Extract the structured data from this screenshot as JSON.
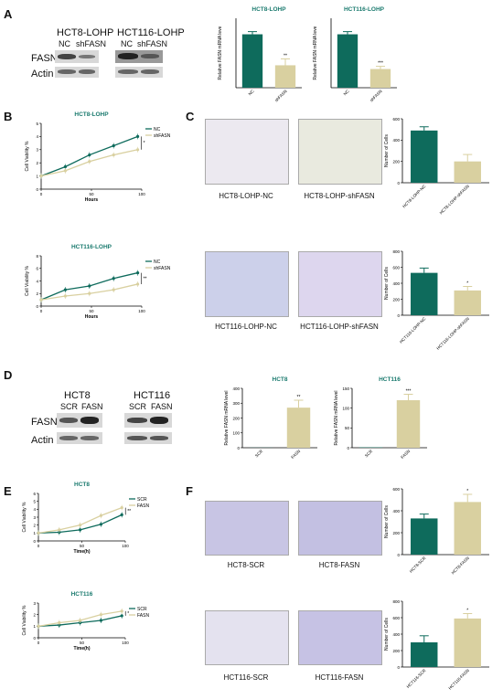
{
  "colors": {
    "teal": "#0e6b5c",
    "khaki": "#d9d0a0",
    "tealLine": "#1a7a6e"
  },
  "A": {
    "letter": "A",
    "wb": {
      "group1": "HCT8-LOHP",
      "group2": "HCT116-LOHP",
      "lane1": "NC",
      "lane2": "shFASN",
      "lane3": "NC",
      "lane4": "shFASN",
      "row1": "FASN",
      "row2": "Actin"
    }
  },
  "B": {
    "letter": "B"
  },
  "C": {
    "letter": "C",
    "captions": [
      "HCT8-LOHP-NC",
      "HCT8-LOHP-shFASN",
      "HCT116-LOHP-NC",
      "HCT116-LOHP-shFASN"
    ]
  },
  "D": {
    "letter": "D",
    "wb": {
      "group1": "HCT8",
      "group2": "HCT116",
      "lane1": "SCR",
      "lane2": "FASN",
      "lane3": "SCR",
      "lane4": "FASN",
      "row1": "FASN",
      "row2": "Actin"
    }
  },
  "E": {
    "letter": "E"
  },
  "F": {
    "letter": "F",
    "captions": [
      "HCT8-SCR",
      "HCT8-FASN",
      "HCT116-SCR",
      "HCT116-FASN"
    ]
  },
  "chart_data": [
    {
      "id": "A-HCT8",
      "type": "bar",
      "title": "HCT8-LOHP",
      "ylabel": "Relative FASN mRNA leve",
      "categories": [
        "NC",
        "shFASN"
      ],
      "values": [
        1.0,
        0.42
      ],
      "errors": [
        0.05,
        0.12
      ],
      "ylim": [
        0,
        1.3
      ],
      "sig": "**"
    },
    {
      "id": "A-HCT116",
      "type": "bar",
      "title": "HCT116-LOHP",
      "ylabel": "Relative FASN mRNA leve",
      "categories": [
        "NC",
        "shFASN"
      ],
      "values": [
        1.0,
        0.35
      ],
      "errors": [
        0.05,
        0.05
      ],
      "ylim": [
        0,
        1.3
      ],
      "sig": "***"
    },
    {
      "id": "B-HCT8",
      "type": "line",
      "title": "HCT8-LOHP",
      "xlabel": "Hours",
      "ylabel": "Cell Viability %",
      "x": [
        0,
        24,
        48,
        72,
        96
      ],
      "xticks": [
        0,
        50,
        100
      ],
      "ylim": [
        0,
        5
      ],
      "yticks": [
        0,
        1,
        2,
        3,
        4,
        5
      ],
      "legend": [
        "NC",
        "shFASN"
      ],
      "series": [
        {
          "name": "NC",
          "values": [
            1.0,
            1.7,
            2.6,
            3.3,
            4.0
          ]
        },
        {
          "name": "shFASN",
          "values": [
            1.0,
            1.4,
            2.1,
            2.6,
            3.0
          ]
        }
      ],
      "sig": "*"
    },
    {
      "id": "B-HCT116",
      "type": "line",
      "title": "HCT116-LOHP",
      "xlabel": "Hours",
      "ylabel": "Cell Viability %",
      "x": [
        0,
        24,
        48,
        72,
        96
      ],
      "xticks": [
        0,
        50,
        100
      ],
      "ylim": [
        0,
        8
      ],
      "yticks": [
        0,
        2,
        4,
        6,
        8
      ],
      "legend": [
        "NC",
        "shFASN"
      ],
      "series": [
        {
          "name": "NC",
          "values": [
            1.0,
            2.6,
            3.2,
            4.4,
            5.3
          ]
        },
        {
          "name": "shFASN",
          "values": [
            1.0,
            1.6,
            2.0,
            2.6,
            3.5
          ]
        }
      ],
      "sig": "**"
    },
    {
      "id": "C-HCT8",
      "type": "bar",
      "ylabel": "Number of Cells",
      "categories": [
        "HCT8-LOHP-NC",
        "HCT8-LOHP-shFASN"
      ],
      "values": [
        490,
        200
      ],
      "errors": [
        35,
        65
      ],
      "ylim": [
        0,
        600
      ],
      "yticks": [
        0,
        200,
        400,
        600
      ]
    },
    {
      "id": "C-HCT116",
      "type": "bar",
      "ylabel": "Number of Cells",
      "categories": [
        "HCT116-LOHP-NC",
        "HCT116-LOHP-shFASN"
      ],
      "values": [
        530,
        310
      ],
      "errors": [
        60,
        50
      ],
      "ylim": [
        0,
        800
      ],
      "yticks": [
        0,
        200,
        400,
        600,
        800
      ],
      "sig": "*"
    },
    {
      "id": "D-HCT8",
      "type": "bar",
      "title": "HCT8",
      "ylabel": "Relative FASN mRNA level",
      "categories": [
        "SCR",
        "FASN"
      ],
      "values": [
        1,
        270
      ],
      "errors": [
        0,
        50
      ],
      "ylim": [
        0,
        400
      ],
      "yticks": [
        0,
        100,
        200,
        300,
        400
      ],
      "sig": "**"
    },
    {
      "id": "D-HCT116",
      "type": "bar",
      "title": "HCT116",
      "ylabel": "Relative FASN mRNA level",
      "categories": [
        "SCR",
        "FASN"
      ],
      "values": [
        1,
        120
      ],
      "errors": [
        0,
        15
      ],
      "ylim": [
        0,
        150
      ],
      "yticks": [
        0,
        50,
        100,
        150
      ],
      "sig": "***"
    },
    {
      "id": "E-HCT8",
      "type": "line",
      "title": "HCT8",
      "xlabel": "Time(h)",
      "ylabel": "Cell Viability %",
      "x": [
        0,
        24,
        48,
        72,
        96
      ],
      "xticks": [
        0,
        50,
        100
      ],
      "ylim": [
        0,
        6
      ],
      "yticks": [
        0,
        1,
        2,
        3,
        4,
        5,
        6
      ],
      "legend": [
        "SCR",
        "FASN"
      ],
      "series": [
        {
          "name": "SCR",
          "values": [
            1.0,
            1.1,
            1.4,
            2.1,
            3.3
          ]
        },
        {
          "name": "FASN",
          "values": [
            1.0,
            1.4,
            2.0,
            3.2,
            4.2
          ]
        }
      ],
      "sig": "**"
    },
    {
      "id": "E-HCT116",
      "type": "line",
      "title": "HCT116",
      "xlabel": "Time(h)",
      "ylabel": "Cell Viability %",
      "x": [
        0,
        24,
        48,
        72,
        96
      ],
      "xticks": [
        0,
        50,
        100
      ],
      "ylim": [
        0,
        3
      ],
      "yticks": [
        0,
        1,
        2,
        3
      ],
      "legend": [
        "SCR",
        "FASN"
      ],
      "series": [
        {
          "name": "SCR",
          "values": [
            1.0,
            1.1,
            1.3,
            1.5,
            1.9
          ]
        },
        {
          "name": "FASN",
          "values": [
            1.0,
            1.3,
            1.5,
            2.0,
            2.3
          ]
        }
      ],
      "sig": "*"
    },
    {
      "id": "F-HCT8",
      "type": "bar",
      "ylabel": "Number of Cells",
      "categories": [
        "HCT8-SCR",
        "HCT8-FASN"
      ],
      "values": [
        330,
        480
      ],
      "errors": [
        40,
        70
      ],
      "ylim": [
        0,
        600
      ],
      "yticks": [
        0,
        200,
        400,
        600
      ],
      "sig": "*"
    },
    {
      "id": "F-HCT116",
      "type": "bar",
      "ylabel": "Number of Cells",
      "categories": [
        "HCT116-SCR",
        "HCT116-FASN"
      ],
      "values": [
        300,
        590
      ],
      "errors": [
        80,
        60
      ],
      "ylim": [
        0,
        800
      ],
      "yticks": [
        0,
        200,
        400,
        600,
        800
      ],
      "sig": "*"
    }
  ]
}
